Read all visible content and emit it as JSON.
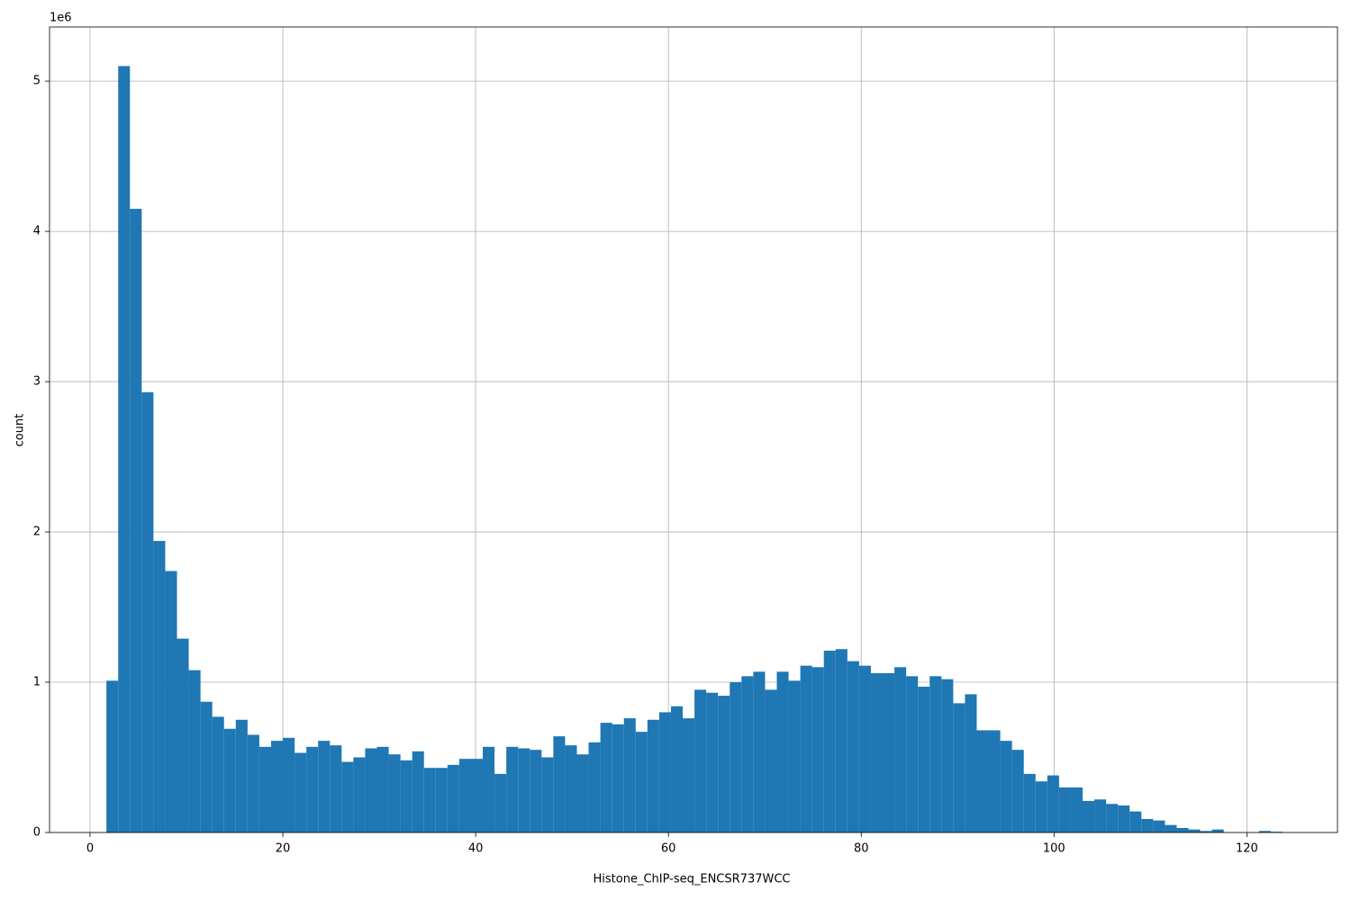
{
  "chart_data": {
    "type": "histogram",
    "x_label": "Histone_ChIP-seq_ENCSR737WCC",
    "y_label": "count",
    "y_offset_label": "1e6",
    "color": "#1f77b4",
    "grid": true,
    "xlim": [
      -4.2,
      129.4
    ],
    "ylim": [
      0,
      5.36
    ],
    "xticks": [
      0,
      20,
      40,
      60,
      80,
      100,
      120
    ],
    "yticks": [
      0,
      1,
      2,
      3,
      4,
      5
    ],
    "bins": [
      1.7,
      2.92,
      4.14,
      5.36,
      6.58,
      7.8,
      9.02,
      10.24,
      11.46,
      12.68,
      13.9,
      15.12,
      16.34,
      17.56,
      18.78,
      20,
      21.22,
      22.44,
      23.66,
      24.88,
      26.1,
      27.32,
      28.54,
      29.76,
      30.98,
      32.2,
      33.42,
      34.64,
      35.86,
      37.08,
      38.3,
      39.52,
      40.74,
      41.96,
      43.18,
      44.4,
      45.62,
      46.84,
      48.06,
      49.28,
      50.5,
      51.72,
      52.94,
      54.16,
      55.38,
      56.6,
      57.82,
      59.04,
      60.26,
      61.48,
      62.7,
      63.92,
      65.14,
      66.36,
      67.58,
      68.8,
      70.02,
      71.24,
      72.46,
      73.68,
      74.9,
      76.12,
      77.34,
      78.56,
      79.78,
      81,
      82.22,
      83.44,
      84.66,
      85.88,
      87.1,
      88.32,
      89.54,
      90.76,
      91.98,
      93.2,
      94.42,
      95.64,
      96.86,
      98.08,
      99.3,
      100.52,
      101.74,
      102.96,
      104.18,
      105.4,
      106.62,
      107.84,
      109.06,
      110.28,
      111.5,
      112.72,
      113.94,
      115.16,
      116.38,
      117.6,
      118.82,
      120.04,
      121.26,
      122.48,
      123.7
    ],
    "values": [
      1.01,
      5.1,
      4.15,
      2.93,
      1.94,
      1.74,
      1.29,
      1.08,
      0.87,
      0.77,
      0.69,
      0.75,
      0.65,
      0.57,
      0.61,
      0.63,
      0.53,
      0.57,
      0.61,
      0.58,
      0.47,
      0.5,
      0.56,
      0.57,
      0.52,
      0.48,
      0.54,
      0.43,
      0.43,
      0.45,
      0.49,
      0.49,
      0.57,
      0.39,
      0.57,
      0.56,
      0.55,
      0.5,
      0.64,
      0.58,
      0.52,
      0.6,
      0.73,
      0.72,
      0.76,
      0.67,
      0.75,
      0.8,
      0.84,
      0.76,
      0.95,
      0.93,
      0.91,
      1.0,
      1.04,
      1.07,
      0.95,
      1.07,
      1.01,
      1.11,
      1.1,
      1.21,
      1.22,
      1.14,
      1.11,
      1.06,
      1.06,
      1.1,
      1.04,
      0.97,
      1.04,
      1.02,
      0.86,
      0.92,
      0.68,
      0.68,
      0.61,
      0.55,
      0.39,
      0.34,
      0.38,
      0.3,
      0.3,
      0.21,
      0.22,
      0.19,
      0.18,
      0.14,
      0.09,
      0.08,
      0.05,
      0.03,
      0.02,
      0.01,
      0.02,
      0,
      0,
      0,
      0.01,
      0.005
    ]
  }
}
